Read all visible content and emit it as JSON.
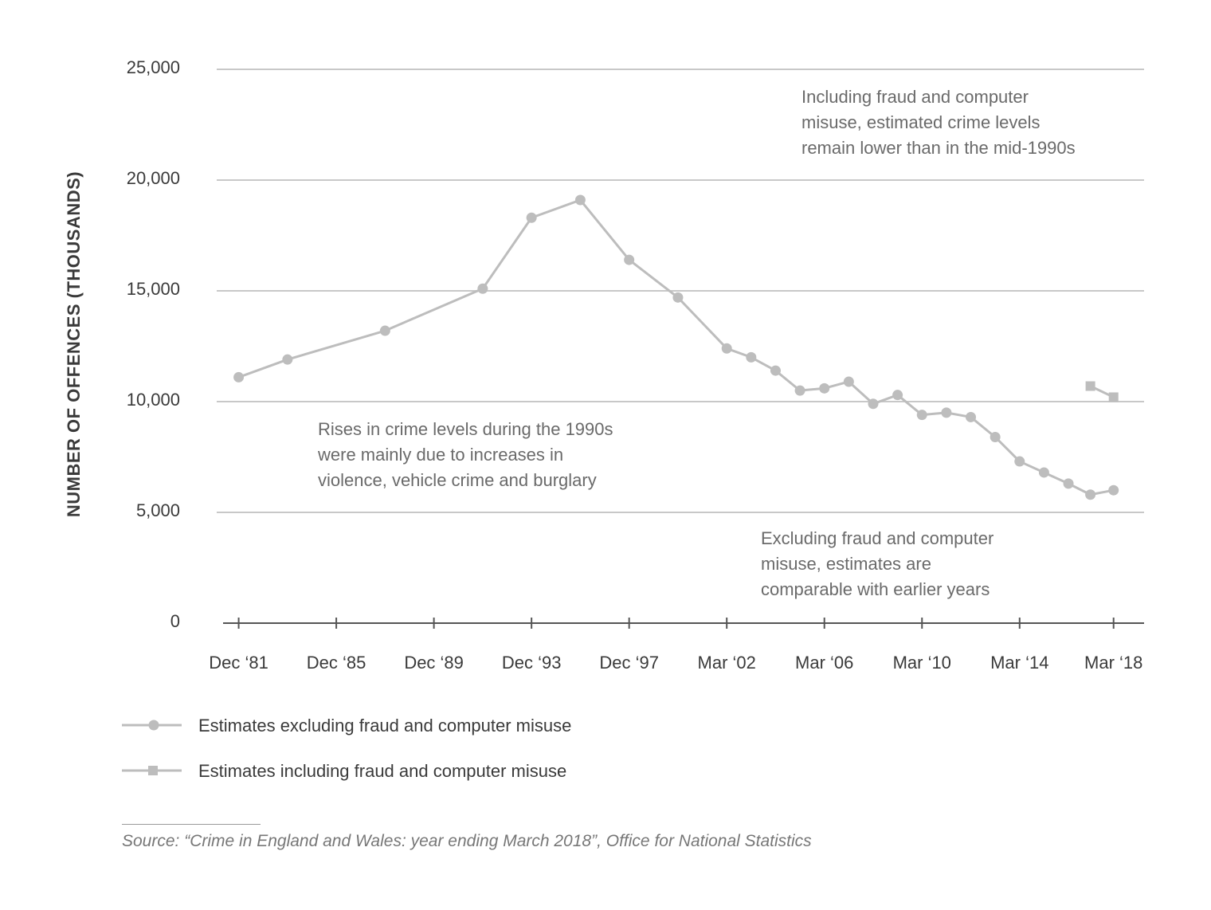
{
  "chart_data": {
    "type": "line",
    "ylabel": "NUMBER OF OFFENCES (THOUSANDS)",
    "ylim": [
      0,
      25000
    ],
    "yticks": [
      0,
      5000,
      10000,
      15000,
      20000,
      25000
    ],
    "ytick_labels": [
      "0",
      "5,000",
      "10,000",
      "15,000",
      "20,000",
      "25,000"
    ],
    "xlim": [
      1981.0,
      2019.0
    ],
    "xticks": [
      {
        "label": "Dec ‘81",
        "x": 1981.9
      },
      {
        "label": "Dec ‘85",
        "x": 1985.9
      },
      {
        "label": "Dec ‘89",
        "x": 1989.9
      },
      {
        "label": "Dec ‘93",
        "x": 1993.9
      },
      {
        "label": "Dec ‘97",
        "x": 1997.9
      },
      {
        "label": "Mar ‘02",
        "x": 2001.9
      },
      {
        "label": "Mar ‘06",
        "x": 2005.9
      },
      {
        "label": "Mar ‘10",
        "x": 2009.9
      },
      {
        "label": "Mar ‘14",
        "x": 2013.9
      },
      {
        "label": "Mar ‘18",
        "x": 2017.75
      }
    ],
    "grid": true,
    "series": [
      {
        "name": "Estimates excluding fraud and computer misuse",
        "marker": "circle",
        "color": "#bdbdbd",
        "x": [
          1981.9,
          1983.9,
          1987.9,
          1991.9,
          1993.9,
          1995.9,
          1997.9,
          1999.9,
          2001.9,
          2002.9,
          2003.9,
          2004.9,
          2005.9,
          2006.9,
          2007.9,
          2008.9,
          2009.9,
          2010.9,
          2011.9,
          2012.9,
          2013.9,
          2014.9,
          2015.9,
          2016.8,
          2017.75
        ],
        "y": [
          11100,
          11900,
          13200,
          15100,
          18300,
          19100,
          16400,
          14700,
          12400,
          12000,
          11400,
          10500,
          10600,
          10900,
          9900,
          10300,
          9400,
          9500,
          9300,
          8400,
          7300,
          6800,
          6300,
          5800,
          6000
        ]
      },
      {
        "name": "Estimates including fraud and computer misuse",
        "marker": "square",
        "color": "#bdbdbd",
        "x": [
          2016.8,
          2017.75
        ],
        "y": [
          10700,
          10200
        ]
      }
    ],
    "annotations": [
      {
        "name": "annotation-including-fraud",
        "lines": [
          "Including fraud and computer",
          "misuse, estimated crime levels",
          "remain lower than in the mid-1990s"
        ]
      },
      {
        "name": "annotation-1990s-rises",
        "lines": [
          "Rises in crime levels during the 1990s",
          "were mainly due to increases in",
          "violence, vehicle crime and burglary"
        ]
      },
      {
        "name": "annotation-excluding-fraud",
        "lines": [
          "Excluding fraud and computer",
          "misuse, estimates are",
          "comparable with earlier years"
        ]
      }
    ],
    "legend_position": "bottom-left"
  },
  "source": "Source: “Crime in England and Wales: year ending March 2018”, Office for National Statistics",
  "colors": {
    "series": "#bdbdbd",
    "grid": "#c8c8c8",
    "axis": "#555555",
    "text": "#3a3a3a",
    "annotation": "#6a6a6a"
  }
}
